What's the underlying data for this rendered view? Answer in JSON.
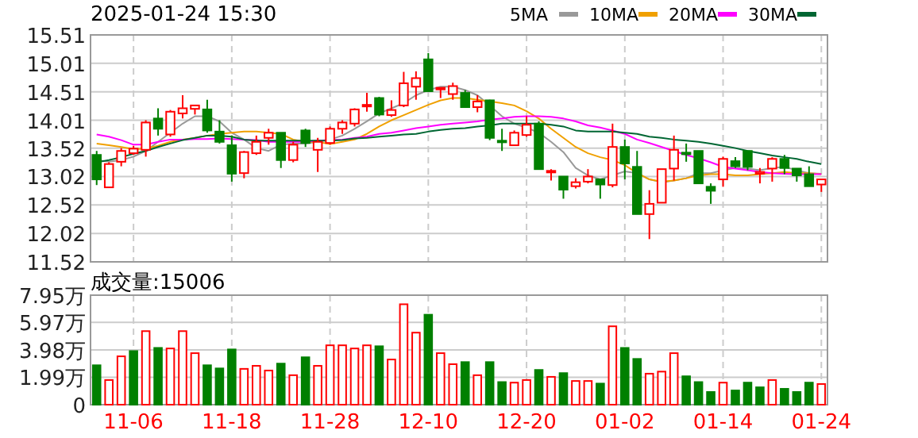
{
  "chart_data": [
    {
      "type": "candlestick",
      "title": "2025-01-24 15:30",
      "categories": [
        null,
        null,
        null,
        null,
        null,
        null,
        null,
        null,
        null,
        null,
        null,
        null,
        null,
        null,
        null,
        null,
        null,
        null,
        null,
        null,
        null,
        null,
        null,
        null,
        null,
        null,
        null,
        null,
        null,
        null,
        null,
        null,
        null,
        null,
        null,
        null,
        null,
        null,
        null,
        null,
        null,
        null,
        null,
        null,
        null,
        null,
        null,
        null,
        null,
        null,
        null,
        null,
        null,
        null,
        null,
        null,
        null,
        null,
        null,
        null
      ],
      "ohlc": [
        [
          13.4,
          13.47,
          12.87,
          12.97
        ],
        [
          12.83,
          13.27,
          12.83,
          13.24
        ],
        [
          13.28,
          13.52,
          13.2,
          13.47
        ],
        [
          13.43,
          13.56,
          13.4,
          13.51
        ],
        [
          13.49,
          14.01,
          13.37,
          13.97
        ],
        [
          14.04,
          14.22,
          13.74,
          13.86
        ],
        [
          13.76,
          14.19,
          13.72,
          14.16
        ],
        [
          14.13,
          14.45,
          14.04,
          14.22
        ],
        [
          14.21,
          14.28,
          14.11,
          14.27
        ],
        [
          14.2,
          14.37,
          13.79,
          13.83
        ],
        [
          13.81,
          14.01,
          13.6,
          13.63
        ],
        [
          13.57,
          13.74,
          12.93,
          13.07
        ],
        [
          13.08,
          13.47,
          12.99,
          13.45
        ],
        [
          13.43,
          13.74,
          13.4,
          13.63
        ],
        [
          13.7,
          13.86,
          13.58,
          13.79
        ],
        [
          13.79,
          13.79,
          13.17,
          13.31
        ],
        [
          13.31,
          13.63,
          13.27,
          13.58
        ],
        [
          13.83,
          13.86,
          13.54,
          13.61
        ],
        [
          13.49,
          13.7,
          13.1,
          13.63
        ],
        [
          13.61,
          13.9,
          13.58,
          13.86
        ],
        [
          13.86,
          14.01,
          13.77,
          13.97
        ],
        [
          13.95,
          14.22,
          13.9,
          14.2
        ],
        [
          14.27,
          14.49,
          14.16,
          14.28
        ],
        [
          14.4,
          14.42,
          14.08,
          14.11
        ],
        [
          14.1,
          14.36,
          14.07,
          14.19
        ],
        [
          14.27,
          14.86,
          14.24,
          14.66
        ],
        [
          14.6,
          14.87,
          14.37,
          14.75
        ],
        [
          15.08,
          15.19,
          14.52,
          14.52
        ],
        [
          14.57,
          14.58,
          14.4,
          14.58
        ],
        [
          14.47,
          14.67,
          14.37,
          14.61
        ],
        [
          14.49,
          14.54,
          14.24,
          14.24
        ],
        [
          14.24,
          14.45,
          14.15,
          14.34
        ],
        [
          14.36,
          14.37,
          13.66,
          13.7
        ],
        [
          13.65,
          13.86,
          13.47,
          13.63
        ],
        [
          13.57,
          13.83,
          13.56,
          13.79
        ],
        [
          13.75,
          14.08,
          13.72,
          13.93
        ],
        [
          13.95,
          13.99,
          13.15,
          13.15
        ],
        [
          13.1,
          13.15,
          12.95,
          13.12
        ],
        [
          13.02,
          13.02,
          12.63,
          12.79
        ],
        [
          12.85,
          12.99,
          12.81,
          12.92
        ],
        [
          12.93,
          13.15,
          12.9,
          13.02
        ],
        [
          12.97,
          12.97,
          12.63,
          12.88
        ],
        [
          12.87,
          13.95,
          12.83,
          13.54
        ],
        [
          13.54,
          13.67,
          12.97,
          13.25
        ],
        [
          13.19,
          13.47,
          12.36,
          12.36
        ],
        [
          12.36,
          12.78,
          11.92,
          12.54
        ],
        [
          12.56,
          13.15,
          12.56,
          13.15
        ],
        [
          13.16,
          13.74,
          12.95,
          13.49
        ],
        [
          13.44,
          13.6,
          13.28,
          13.42
        ],
        [
          13.47,
          13.47,
          12.9,
          12.9
        ],
        [
          12.84,
          12.9,
          12.54,
          12.77
        ],
        [
          12.97,
          13.37,
          12.84,
          13.33
        ],
        [
          13.29,
          13.36,
          13.17,
          13.2
        ],
        [
          13.47,
          13.47,
          13.13,
          13.19
        ],
        [
          13.07,
          13.17,
          12.9,
          13.1
        ],
        [
          13.16,
          13.36,
          12.93,
          13.33
        ],
        [
          13.33,
          13.4,
          13.06,
          13.17
        ],
        [
          13.16,
          13.16,
          12.93,
          13.04
        ],
        [
          13.06,
          13.2,
          12.85,
          12.85
        ],
        [
          12.88,
          12.97,
          12.75,
          12.97
        ]
      ],
      "series": [
        {
          "name": "5MA",
          "type": "line",
          "color": "#999999",
          "values": [
            13.31,
            13.28,
            13.31,
            13.37,
            13.47,
            13.63,
            13.79,
            13.95,
            14.08,
            14.08,
            13.99,
            13.79,
            13.67,
            13.52,
            13.47,
            13.58,
            13.6,
            13.6,
            13.63,
            13.67,
            13.74,
            13.86,
            13.99,
            14.13,
            14.22,
            14.31,
            14.45,
            14.54,
            14.6,
            14.6,
            14.54,
            14.45,
            14.27,
            14.08,
            13.95,
            13.88,
            13.79,
            13.63,
            13.45,
            13.17,
            13.04,
            12.97,
            13.04,
            13.11,
            13.08,
            12.97,
            12.92,
            12.95,
            12.99,
            13.08,
            13.08,
            13.13,
            13.17,
            13.16,
            13.13,
            13.17,
            13.19,
            13.13,
            13.08,
            13.07
          ]
        },
        {
          "name": "10MA",
          "type": "line",
          "color": "#f0a000",
          "values": [
            13.6,
            13.57,
            13.54,
            13.5,
            13.51,
            13.56,
            13.63,
            13.67,
            13.7,
            13.74,
            13.77,
            13.79,
            13.81,
            13.81,
            13.79,
            13.77,
            13.67,
            13.63,
            13.63,
            13.59,
            13.63,
            13.67,
            13.77,
            13.9,
            14.01,
            14.1,
            14.19,
            14.28,
            14.36,
            14.4,
            14.4,
            14.37,
            14.34,
            14.31,
            14.27,
            14.17,
            14.04,
            13.86,
            13.7,
            13.54,
            13.43,
            13.36,
            13.31,
            13.22,
            13.08,
            12.97,
            12.93,
            12.95,
            12.99,
            13.04,
            13.06,
            13.06,
            13.04,
            13.04,
            13.06,
            13.08,
            13.1,
            13.08,
            13.08,
            13.06
          ]
        },
        {
          "name": "20MA",
          "type": "line",
          "color": "#ff00ff",
          "values": [
            13.76,
            13.72,
            13.66,
            13.58,
            13.58,
            13.63,
            13.67,
            13.67,
            13.68,
            13.68,
            13.69,
            13.68,
            13.67,
            13.66,
            13.63,
            13.63,
            13.63,
            13.63,
            13.65,
            13.66,
            13.67,
            13.7,
            13.72,
            13.77,
            13.79,
            13.83,
            13.87,
            13.9,
            13.93,
            13.95,
            13.97,
            13.99,
            14.02,
            14.04,
            14.07,
            14.08,
            14.08,
            14.07,
            14.04,
            13.99,
            13.92,
            13.88,
            13.83,
            13.77,
            13.67,
            13.61,
            13.54,
            13.47,
            13.4,
            13.34,
            13.27,
            13.19,
            13.16,
            13.13,
            13.1,
            13.08,
            13.07,
            13.06,
            13.06,
            13.06
          ]
        },
        {
          "name": "30MA",
          "type": "line",
          "color": "#006633",
          "values": [
            13.27,
            13.31,
            13.36,
            13.42,
            13.47,
            13.54,
            13.6,
            13.66,
            13.7,
            13.74,
            13.74,
            13.72,
            13.67,
            13.65,
            13.65,
            13.65,
            13.65,
            13.65,
            13.65,
            13.65,
            13.66,
            13.69,
            13.7,
            13.72,
            13.74,
            13.76,
            13.77,
            13.81,
            13.84,
            13.86,
            13.87,
            13.9,
            13.92,
            13.95,
            13.95,
            13.95,
            13.95,
            13.93,
            13.9,
            13.83,
            13.81,
            13.81,
            13.81,
            13.79,
            13.77,
            13.72,
            13.7,
            13.67,
            13.65,
            13.63,
            13.6,
            13.56,
            13.52,
            13.47,
            13.43,
            13.39,
            13.36,
            13.33,
            13.28,
            13.24
          ]
        }
      ],
      "ylim": [
        11.52,
        15.51
      ],
      "yticks": [
        11.52,
        12.02,
        12.52,
        13.02,
        13.52,
        14.01,
        14.51,
        15.01,
        15.51
      ],
      "grid": true,
      "legend": "top right",
      "tick_labels": "y"
    },
    {
      "type": "bar",
      "title": "成交量:15006",
      "categories": [
        null,
        null,
        null,
        "11-06",
        null,
        null,
        null,
        null,
        null,
        null,
        null,
        "11-18",
        null,
        null,
        null,
        null,
        null,
        null,
        null,
        "11-28",
        null,
        null,
        null,
        null,
        null,
        null,
        null,
        "12-10",
        null,
        null,
        null,
        null,
        null,
        null,
        null,
        "12-20",
        null,
        null,
        null,
        null,
        null,
        null,
        null,
        "01-02",
        null,
        null,
        null,
        null,
        null,
        null,
        null,
        "01-14",
        null,
        null,
        null,
        null,
        null,
        null,
        null,
        "01-24"
      ],
      "values": [
        2.86,
        1.79,
        3.51,
        3.89,
        5.34,
        4.12,
        4.08,
        5.34,
        3.74,
        2.86,
        2.63,
        4.01,
        2.6,
        2.82,
        2.48,
        2.98,
        2.14,
        3.44,
        2.82,
        4.31,
        4.31,
        4.08,
        4.31,
        4.24,
        3.28,
        7.29,
        5.23,
        6.53,
        3.74,
        2.94,
        3.09,
        2.14,
        3.09,
        1.64,
        1.6,
        1.79,
        2.52,
        2.02,
        2.29,
        1.72,
        1.72,
        1.53,
        5.69,
        4.12,
        3.32,
        2.25,
        2.4,
        3.74,
        2.06,
        1.64,
        0.92,
        1.6,
        1.03,
        1.6,
        1.26,
        1.79,
        1.15,
        0.92,
        1.6,
        1.5
      ],
      "colors": [
        "#008000",
        "#ff0000",
        "#ff0000",
        "#008000",
        "#ff0000",
        "#008000",
        "#ff0000",
        "#ff0000",
        "#ff0000",
        "#008000",
        "#008000",
        "#008000",
        "#ff0000",
        "#ff0000",
        "#ff0000",
        "#008000",
        "#ff0000",
        "#008000",
        "#ff0000",
        "#ff0000",
        "#ff0000",
        "#ff0000",
        "#ff0000",
        "#008000",
        "#ff0000",
        "#ff0000",
        "#ff0000",
        "#008000",
        "#ff0000",
        "#ff0000",
        "#008000",
        "#ff0000",
        "#008000",
        "#008000",
        "#ff0000",
        "#ff0000",
        "#008000",
        "#ff0000",
        "#008000",
        "#ff0000",
        "#ff0000",
        "#008000",
        "#ff0000",
        "#008000",
        "#008000",
        "#ff0000",
        "#ff0000",
        "#ff0000",
        "#008000",
        "#008000",
        "#008000",
        "#ff0000",
        "#008000",
        "#008000",
        "#008000",
        "#ff0000",
        "#008000",
        "#008000",
        "#008000",
        "#ff0000"
      ],
      "ylim": [
        0,
        7.95
      ],
      "yticks": [
        0,
        {
          "value": 1.99,
          "label": "1.99万"
        },
        {
          "value": 3.98,
          "label": "3.98万"
        },
        {
          "value": 5.97,
          "label": "5.97万"
        },
        {
          "value": 7.95,
          "label": "7.95万"
        }
      ],
      "grid": true
    }
  ]
}
